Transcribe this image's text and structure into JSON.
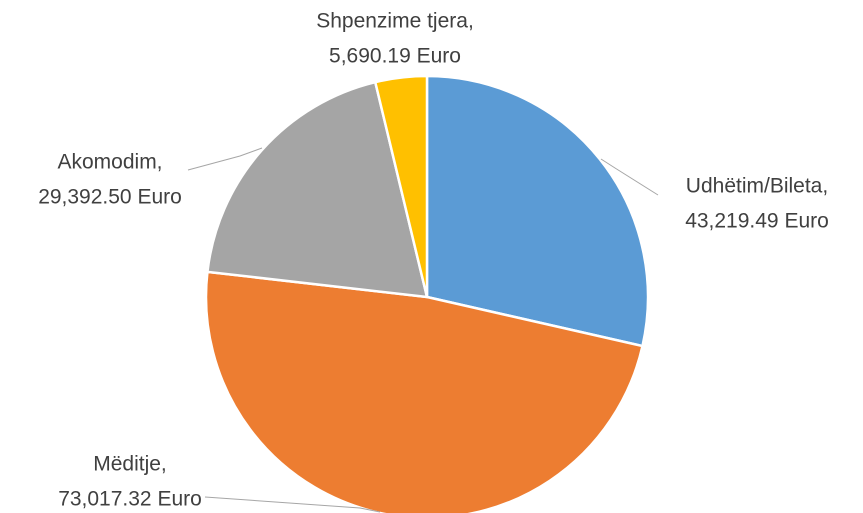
{
  "chart_data": {
    "type": "pie",
    "categories": [
      "Udhëtim/Bileta,",
      "Mëditje,",
      "Akomodim,",
      "Shpenzime tjera,"
    ],
    "values": [
      43219.49,
      73017.32,
      29392.5,
      5690.19
    ],
    "value_labels": [
      "43,219.49 Euro",
      "73,017.32 Euro",
      "29,392.50 Euro",
      "5,690.19 Euro"
    ],
    "colors": [
      "#5b9bd5",
      "#ed7d31",
      "#a5a5a5",
      "#ffc000"
    ]
  }
}
